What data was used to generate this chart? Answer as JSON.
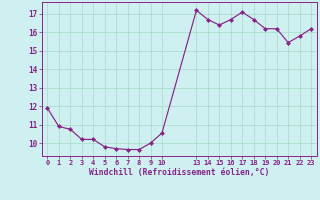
{
  "x": [
    0,
    1,
    2,
    3,
    4,
    5,
    6,
    7,
    8,
    9,
    10,
    13,
    14,
    15,
    16,
    17,
    18,
    19,
    20,
    21,
    22,
    23
  ],
  "y": [
    11.9,
    10.9,
    10.75,
    10.2,
    10.2,
    9.8,
    9.7,
    9.65,
    9.65,
    10.0,
    10.55,
    17.2,
    16.7,
    16.4,
    16.7,
    17.1,
    16.7,
    16.2,
    16.2,
    15.45,
    15.8,
    16.2
  ],
  "xtick_positions": [
    0,
    1,
    2,
    3,
    4,
    5,
    6,
    7,
    8,
    9,
    10,
    13,
    14,
    15,
    16,
    17,
    18,
    19,
    20,
    21,
    22,
    23
  ],
  "xtick_labels": [
    "0",
    "1",
    "2",
    "3",
    "4",
    "5",
    "6",
    "7",
    "8",
    "9",
    "10",
    "13",
    "14",
    "15",
    "16",
    "17",
    "18",
    "19",
    "20",
    "21",
    "22",
    "23"
  ],
  "yticks": [
    10,
    11,
    12,
    13,
    14,
    15,
    16,
    17
  ],
  "ylim": [
    9.3,
    17.65
  ],
  "xlim": [
    -0.5,
    23.5
  ],
  "xlabel": "Windchill (Refroidissement éolien,°C)",
  "line_color": "#882288",
  "marker_color": "#882288",
  "bg_color": "#cef0f0",
  "grid_color": "#aaddcc",
  "axis_color": "#882288",
  "tick_color": "#882288",
  "xlabel_color": "#882288"
}
